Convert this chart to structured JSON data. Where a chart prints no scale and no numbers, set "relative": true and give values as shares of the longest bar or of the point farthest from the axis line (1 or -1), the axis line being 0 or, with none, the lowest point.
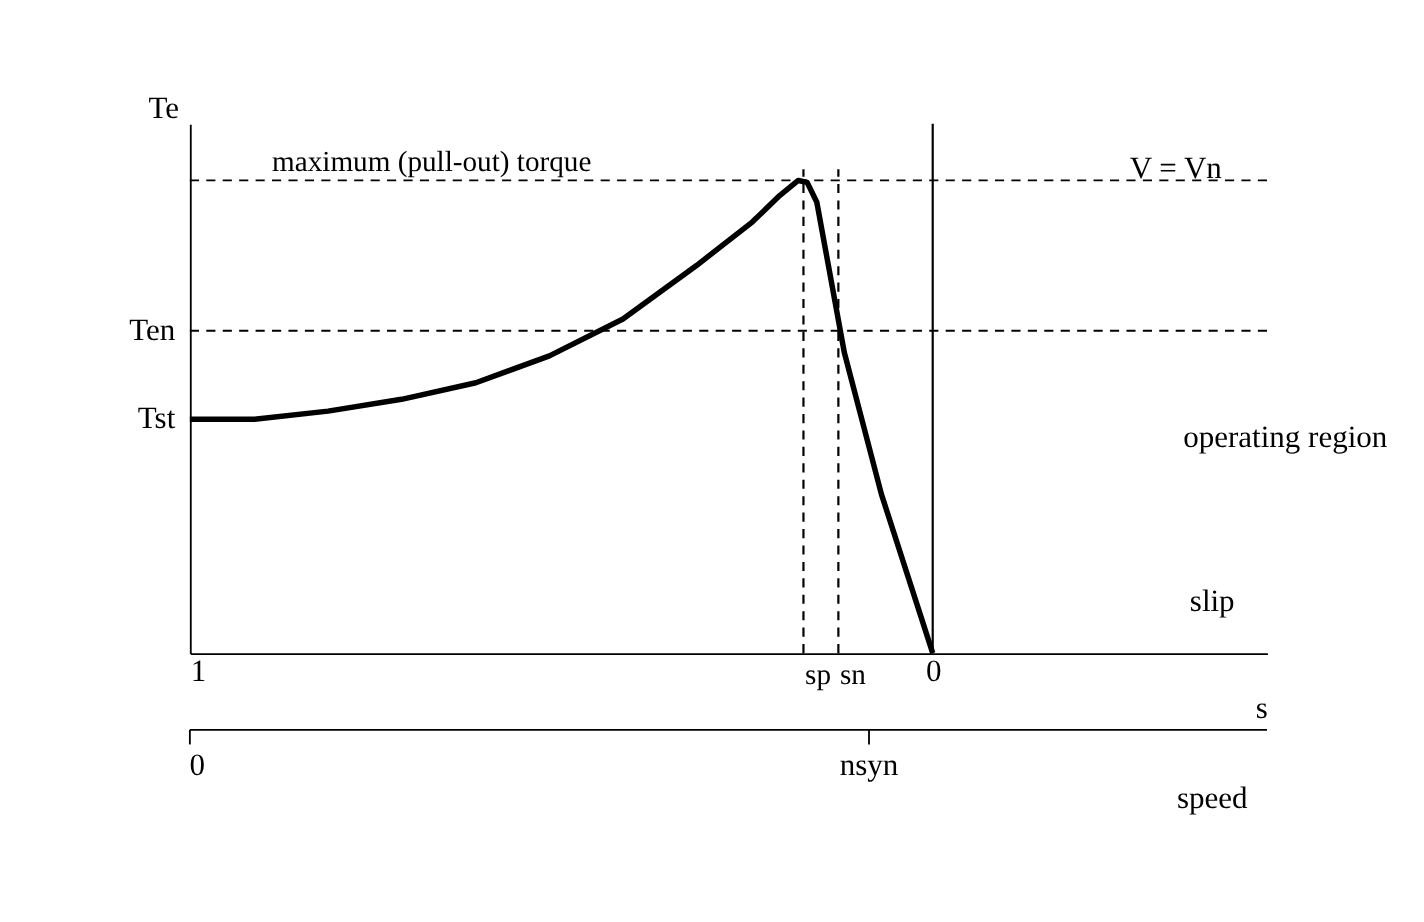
{
  "chart_data": {
    "type": "line",
    "relative": true,
    "ylabel": "Te",
    "xlabel": "s",
    "x": [
      1.0,
      0.913,
      0.814,
      0.715,
      0.615,
      0.516,
      0.417,
      0.318,
      0.243,
      0.206,
      0.181,
      0.169,
      0.156,
      0.119,
      0.069,
      0
    ],
    "values": [
      0.495,
      0.495,
      0.512,
      0.537,
      0.572,
      0.629,
      0.707,
      0.82,
      0.912,
      0.968,
      1.0,
      0.996,
      0.954,
      0.636,
      0.336,
      0
    ],
    "color": "#000000",
    "xlim": [
      1,
      -0.45
    ],
    "xticks": [
      1,
      0
    ],
    "ref_lines": [
      {
        "axis": "y",
        "value": 1.0,
        "label": "maximum (pull-out) torque",
        "line_style": "dashed"
      },
      {
        "axis": "y",
        "value": 0.682,
        "line_style": "dashed"
      },
      {
        "axis": "x",
        "value": 0.174,
        "label": "sp",
        "line_style": "dashed"
      },
      {
        "axis": "x",
        "value": 0.127,
        "label": "sn",
        "line_style": "dashed"
      },
      {
        "axis": "x",
        "value": 0,
        "line_style": "solid"
      }
    ],
    "annotations": [
      {
        "text": "Ten",
        "x": 1,
        "y": 0.682
      },
      {
        "text": "Tst",
        "x": 1,
        "y": 0.495
      },
      "V = Vn",
      "operating region",
      "slip",
      "0",
      "nsyn",
      "speed"
    ]
  }
}
